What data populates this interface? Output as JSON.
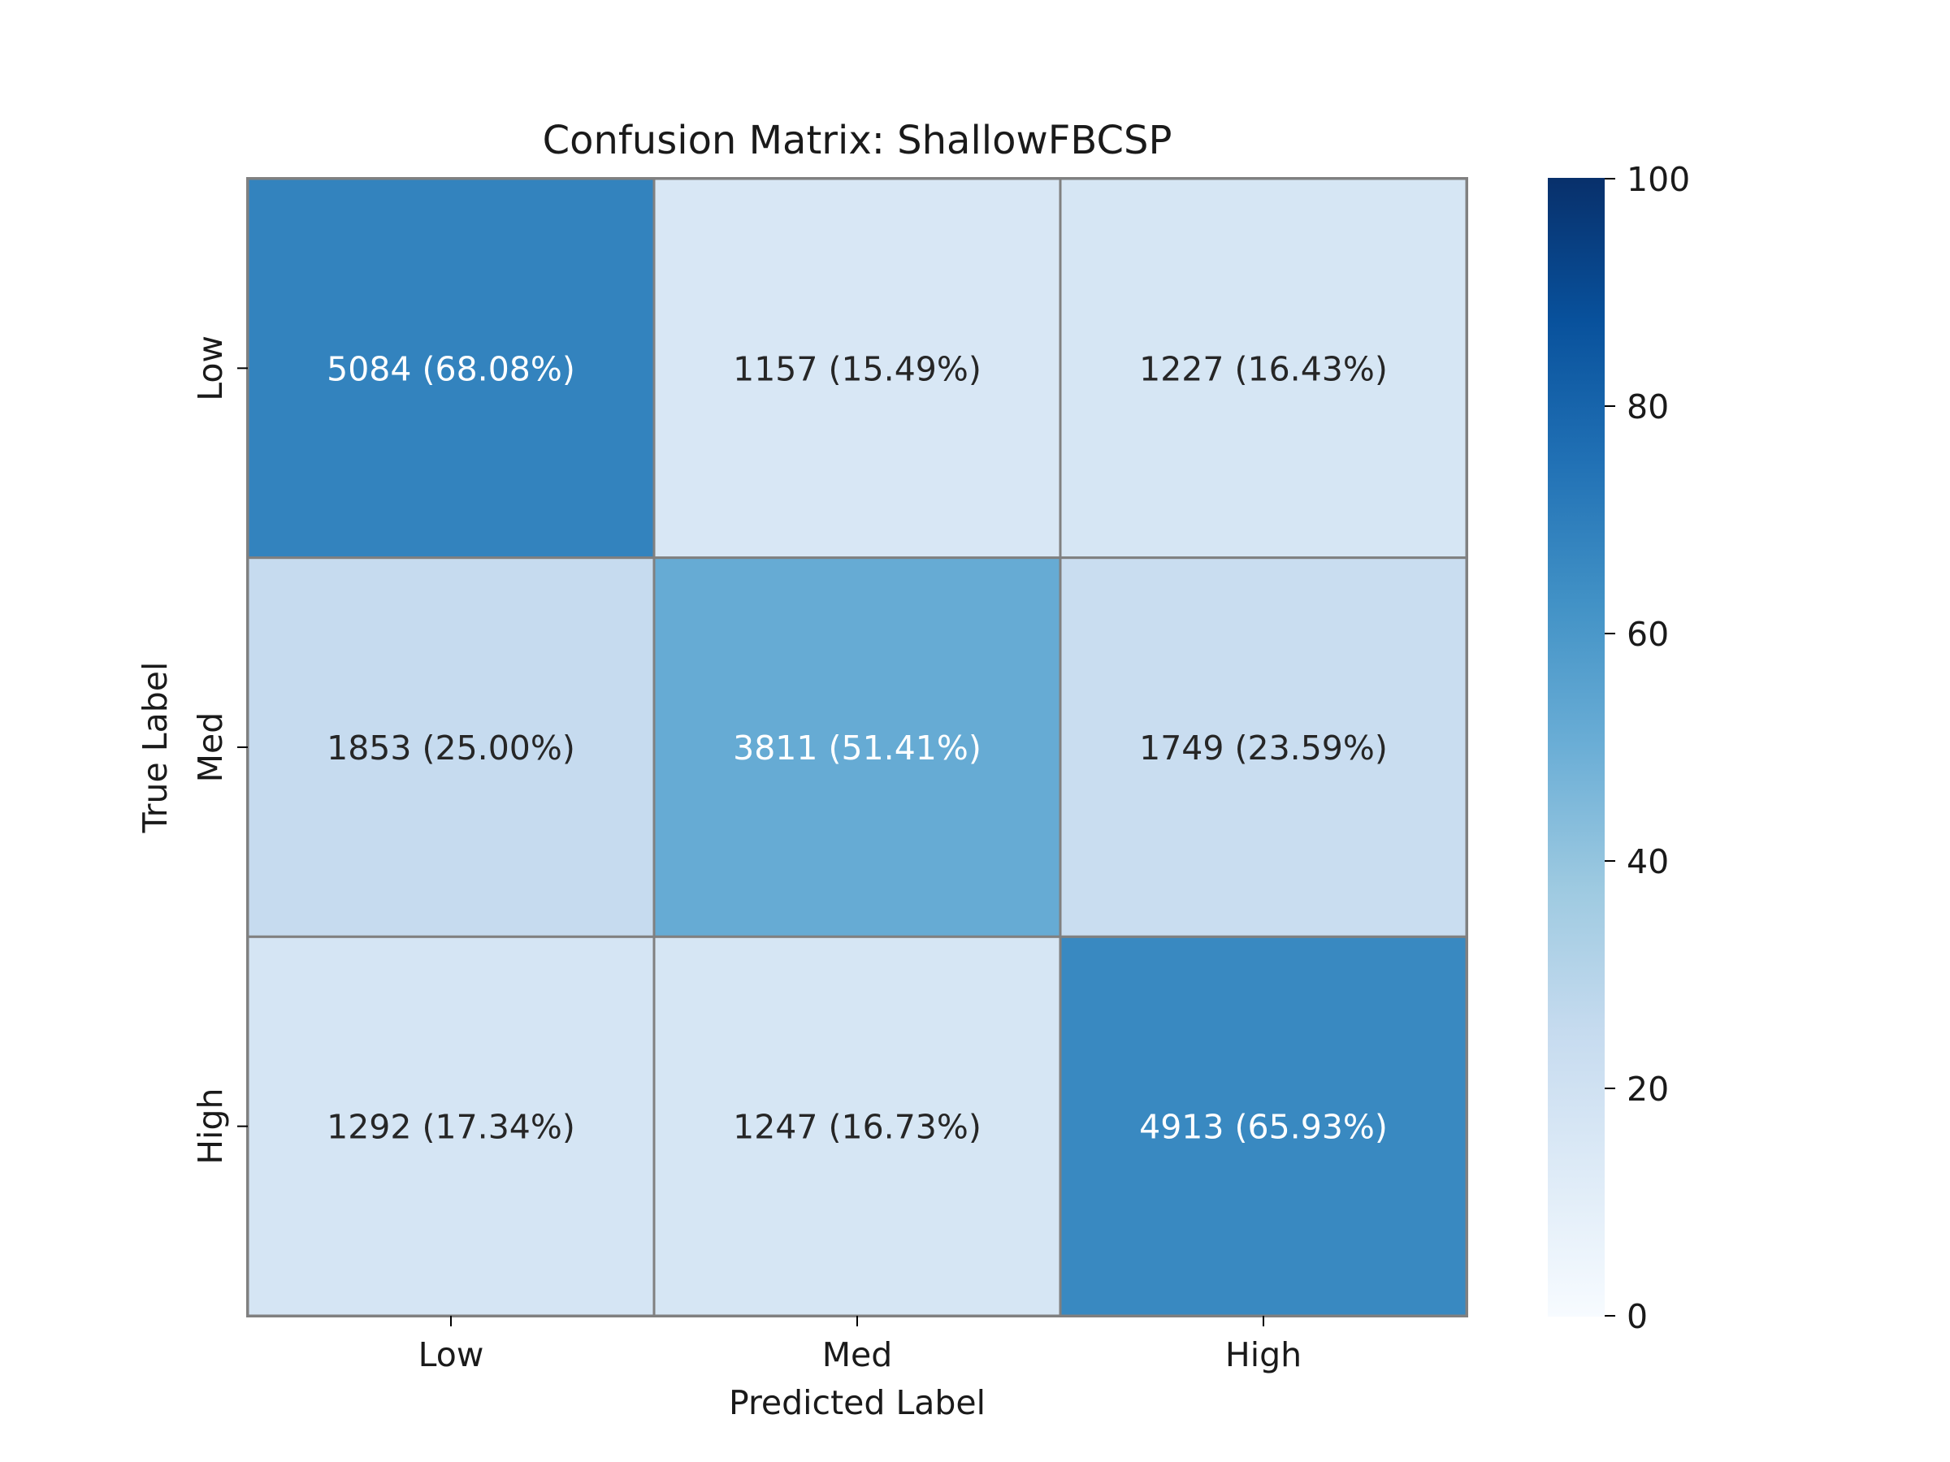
{
  "chart_data": {
    "type": "heatmap",
    "title": "Confusion Matrix: ShallowFBCSP",
    "xlabel": "Predicted Label",
    "ylabel": "True Label",
    "x_categories": [
      "Low",
      "Med",
      "High"
    ],
    "y_categories": [
      "Low",
      "Med",
      "High"
    ],
    "counts": [
      [
        5084,
        1157,
        1227
      ],
      [
        1853,
        3811,
        1749
      ],
      [
        1292,
        1247,
        4913
      ]
    ],
    "percentages": [
      [
        68.08,
        15.49,
        16.43
      ],
      [
        25.0,
        51.41,
        23.59
      ],
      [
        17.34,
        16.73,
        65.93
      ]
    ],
    "cell_labels": [
      [
        "5084 (68.08%)",
        "1157 (15.49%)",
        "1227 (16.43%)"
      ],
      [
        "1853 (25.00%)",
        "3811 (51.41%)",
        "1749 (23.59%)"
      ],
      [
        "1292 (17.34%)",
        "1247 (16.73%)",
        "4913 (65.93%)"
      ]
    ],
    "colorbar": {
      "range": [
        0,
        100
      ],
      "ticks": [
        "0",
        "20",
        "40",
        "60",
        "80",
        "100"
      ],
      "colormap": "Blues"
    },
    "grid": true,
    "legend": "none"
  }
}
